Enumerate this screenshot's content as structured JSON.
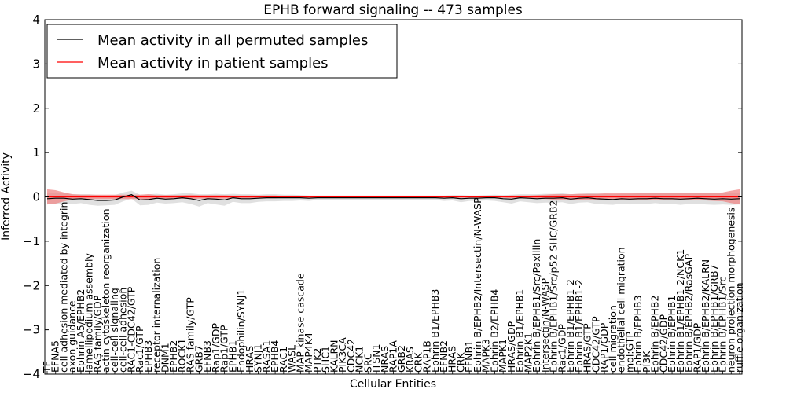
{
  "chart_data": {
    "type": "line",
    "title": "EPHB forward signaling -- 473 samples",
    "xlabel": "Cellular Entities",
    "ylabel": "Inferred Activity",
    "ylim": [
      -4,
      4
    ],
    "yticks": [
      "4",
      "3",
      "2",
      "1",
      "0",
      "−1",
      "−2",
      "−3",
      "−4"
    ],
    "grid": false,
    "legend_position": "top-left",
    "categories": [
      "TF",
      "EFNA5",
      "cell adhesion mediated by integrin",
      "axon guidance",
      "Ephrin A5/EPHB2",
      "lamellipodium assembly",
      "RAS family/GDP",
      "actin cytoskeleton reorganization",
      "cell-cell signaling",
      "cell-cell adhesion",
      "RAC1-CDC42/GTP",
      "Rac1/GTP",
      "EPHB3",
      "receptor internalization",
      "DNM1",
      "EPHB2",
      "ROCK1",
      "RAS family/GTP",
      "GRB7",
      "EFNB3",
      "Rap1/GDP",
      "Rap1/GTP",
      "EPHB1",
      "Endophilin/SYNJ1",
      "HRAS",
      "SYNJ1",
      "RASA1",
      "EPHB4",
      "RAC1",
      "WASL",
      "MAP kinase cascade",
      "MAP4K4",
      "PTK2",
      "SHC1",
      "KALRN",
      "PIK3CA",
      "CDC42",
      "NCK1",
      "SRC",
      "ITSN1",
      "NRAS",
      "RAP1A",
      "GRB2",
      "KRAS",
      "CRK",
      "RAP1B",
      "Ephrin B1/EPHB3",
      "EFNB2",
      "HRAS",
      "CRK",
      "EFNB1",
      "Ephrin B/EPHB2/Intersectin/N-WASP",
      "MAPK3",
      "Ephrin B2/EPHB4",
      "MAPK1",
      "HRAS/GDP",
      "Ephrin B1/EPHB1",
      "MAP2K1",
      "Ephrin B/EPHB1/Src/Paxillin",
      "Intersectin/N-WASP",
      "Ephrin B/EPHB1/Src/p52 SHC/GRB2",
      "Rac1/GDP",
      "Ephrin B1/EPHB1-2",
      "Ephrin B1/EPHB1-2",
      "HRAS/GTP",
      "CDC42/GTP",
      "RAP1/GDP",
      "cell migration",
      "endothelial cell migration",
      "mol:GTP",
      "Ephrin B/EPHB3",
      "PI3K",
      "Ephrin B/EPHB2",
      "CDC42/GDP",
      "Ephrin B/EPHB1",
      "Ephrin B1/EPHB1-2/NCK1",
      "Ephrin B/EPHB2/RasGAP",
      "RAP1/GDP",
      "Ephrin B/EPHB2/KALRN",
      "Ephrin B/EPHB1/GRB7",
      "Ephrin B/EPHB1/Src",
      "neuron projection morphogenesis",
      "ruffle organization"
    ],
    "series": [
      {
        "name": "Mean activity in all permuted samples",
        "color": "#000000",
        "band_color": "#bbbbbb",
        "values": [
          -0.04,
          -0.03,
          -0.03,
          -0.05,
          -0.04,
          -0.06,
          -0.08,
          -0.08,
          -0.07,
          0.0,
          0.05,
          -0.07,
          -0.06,
          -0.03,
          -0.05,
          -0.04,
          -0.02,
          -0.04,
          -0.08,
          -0.04,
          -0.05,
          -0.07,
          -0.02,
          -0.04,
          -0.04,
          -0.03,
          -0.02,
          -0.02,
          -0.02,
          -0.02,
          -0.02,
          -0.03,
          -0.02,
          -0.02,
          -0.02,
          -0.02,
          -0.02,
          -0.02,
          -0.02,
          -0.02,
          -0.02,
          -0.02,
          -0.02,
          -0.02,
          -0.02,
          -0.02,
          -0.02,
          -0.03,
          -0.02,
          -0.04,
          -0.03,
          -0.03,
          -0.02,
          -0.02,
          -0.04,
          -0.05,
          -0.02,
          -0.03,
          -0.04,
          -0.03,
          -0.03,
          -0.02,
          -0.05,
          -0.03,
          -0.02,
          -0.04,
          -0.05,
          -0.06,
          -0.04,
          -0.05,
          -0.04,
          -0.04,
          -0.03,
          -0.04,
          -0.04,
          -0.05,
          -0.04,
          -0.03,
          -0.04,
          -0.05,
          -0.04,
          -0.05,
          -0.04
        ],
        "band": [
          0.12,
          0.13,
          0.12,
          0.11,
          0.1,
          0.12,
          0.12,
          0.11,
          0.11,
          0.1,
          0.09,
          0.12,
          0.12,
          0.1,
          0.1,
          0.1,
          0.1,
          0.12,
          0.14,
          0.1,
          0.12,
          0.13,
          0.09,
          0.1,
          0.1,
          0.08,
          0.08,
          0.08,
          0.07,
          0.07,
          0.06,
          0.06,
          0.05,
          0.05,
          0.05,
          0.05,
          0.05,
          0.05,
          0.05,
          0.05,
          0.05,
          0.05,
          0.05,
          0.05,
          0.05,
          0.05,
          0.05,
          0.06,
          0.06,
          0.08,
          0.06,
          0.06,
          0.06,
          0.07,
          0.08,
          0.1,
          0.08,
          0.09,
          0.1,
          0.1,
          0.1,
          0.1,
          0.11,
          0.1,
          0.1,
          0.12,
          0.12,
          0.12,
          0.11,
          0.12,
          0.12,
          0.12,
          0.11,
          0.12,
          0.12,
          0.13,
          0.12,
          0.12,
          0.13,
          0.13,
          0.13,
          0.13,
          0.13
        ]
      },
      {
        "name": "Mean activity in patient samples",
        "color": "#ff0000",
        "band_color": "#f08080",
        "values": [
          0.0,
          0.0,
          0.0,
          0.0,
          0.0,
          0.0,
          0.0,
          0.0,
          0.0,
          0.0,
          0.0,
          0.0,
          0.0,
          0.0,
          0.0,
          0.0,
          0.0,
          0.0,
          0.0,
          0.0,
          0.0,
          0.0,
          0.0,
          0.0,
          0.0,
          0.0,
          0.0,
          0.0,
          0.0,
          0.0,
          0.0,
          0.0,
          0.0,
          0.0,
          0.0,
          0.0,
          0.0,
          0.0,
          0.0,
          0.0,
          0.0,
          0.0,
          0.0,
          0.0,
          0.0,
          0.0,
          0.0,
          0.0,
          0.0,
          0.0,
          0.0,
          0.0,
          0.0,
          0.0,
          0.0,
          0.0,
          0.0,
          0.0,
          0.0,
          0.0,
          0.0,
          0.0,
          0.0,
          0.0,
          0.0,
          0.0,
          0.0,
          0.0,
          0.0,
          0.0,
          0.0,
          0.0,
          0.0,
          0.0,
          0.0,
          0.0,
          0.0,
          0.0,
          0.0,
          0.0,
          0.0,
          0.0,
          0.0
        ],
        "band": [
          0.17,
          0.15,
          0.1,
          0.06,
          0.05,
          0.05,
          0.05,
          0.05,
          0.05,
          0.05,
          0.05,
          0.05,
          0.06,
          0.04,
          0.04,
          0.04,
          0.04,
          0.05,
          0.04,
          0.04,
          0.04,
          0.04,
          0.03,
          0.03,
          0.03,
          0.03,
          0.03,
          0.03,
          0.02,
          0.02,
          0.02,
          0.02,
          0.02,
          0.02,
          0.02,
          0.02,
          0.02,
          0.02,
          0.02,
          0.02,
          0.02,
          0.02,
          0.02,
          0.02,
          0.02,
          0.02,
          0.02,
          0.02,
          0.02,
          0.02,
          0.02,
          0.02,
          0.02,
          0.02,
          0.02,
          0.03,
          0.03,
          0.03,
          0.04,
          0.05,
          0.06,
          0.06,
          0.06,
          0.07,
          0.07,
          0.07,
          0.08,
          0.08,
          0.08,
          0.08,
          0.08,
          0.08,
          0.08,
          0.08,
          0.08,
          0.08,
          0.08,
          0.08,
          0.08,
          0.09,
          0.1,
          0.14,
          0.17
        ]
      }
    ]
  }
}
